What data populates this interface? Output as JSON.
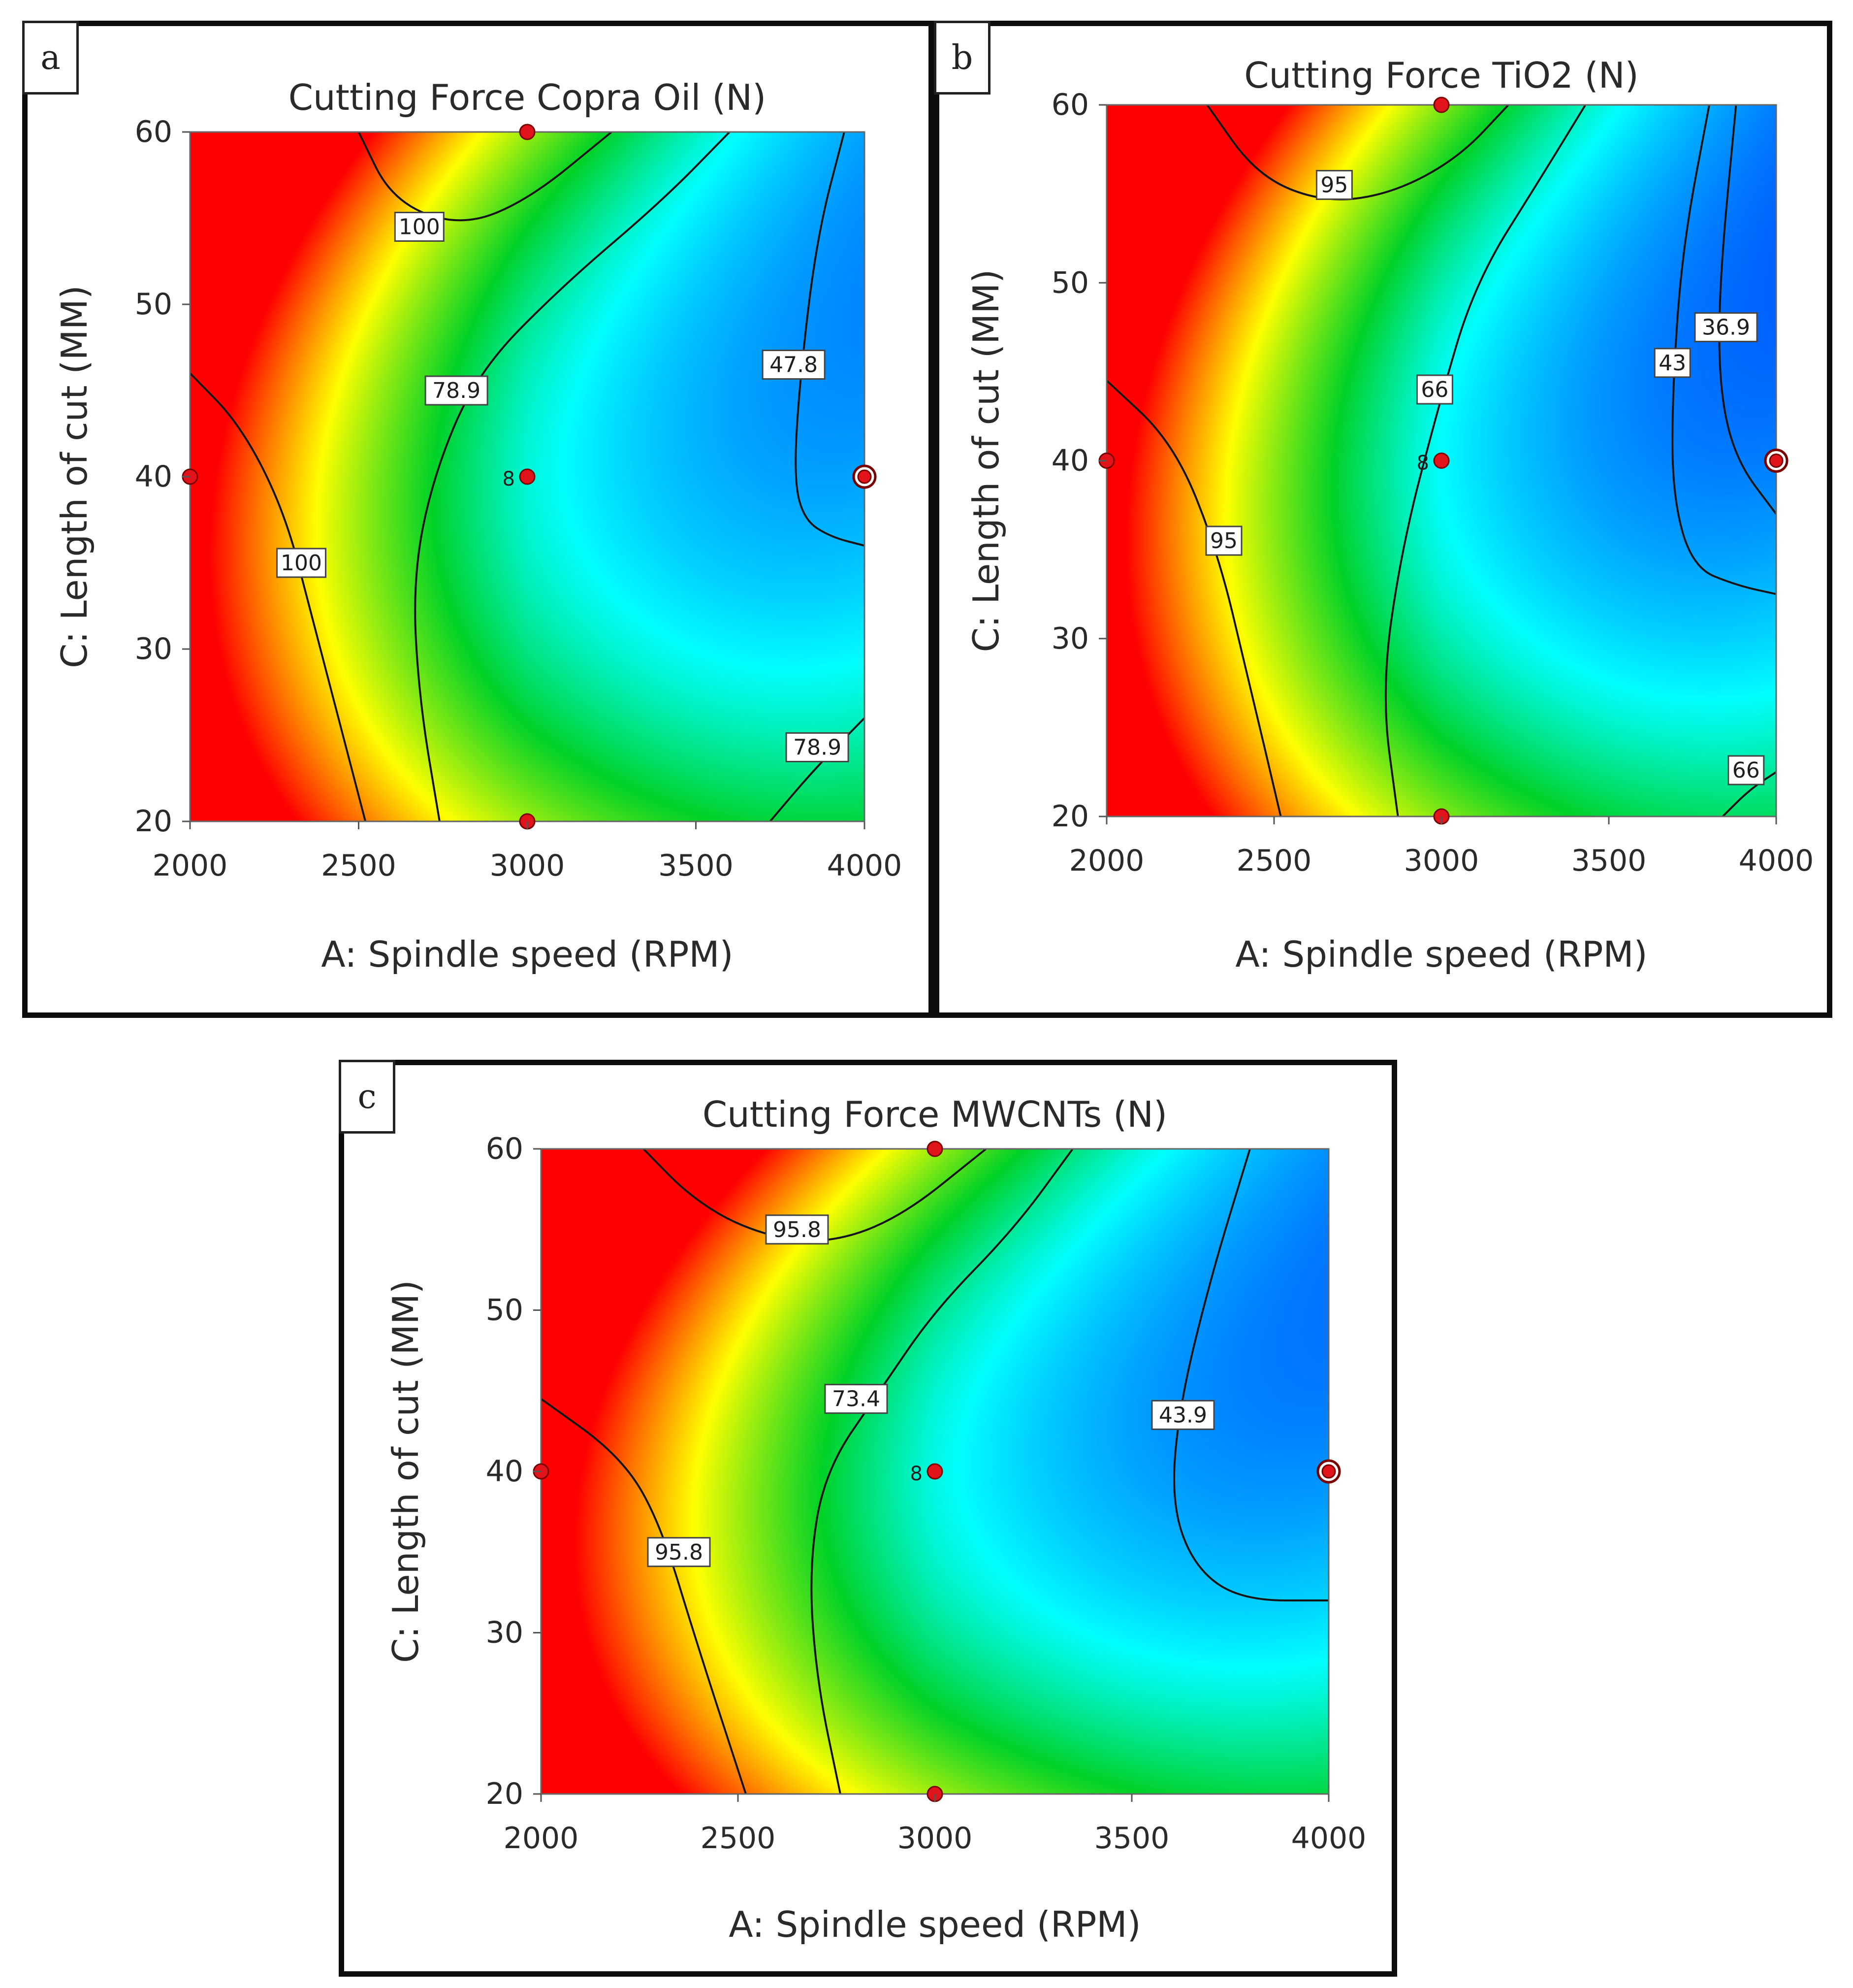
{
  "chart_data": [
    {
      "panel": "a",
      "type": "contour",
      "title": "Cutting Force Copra Oil  (N)",
      "xlabel": "A: Spindle speed (RPM)",
      "ylabel": "C: Length of cut (MM)",
      "xlim": [
        2000,
        4000
      ],
      "ylim": [
        20,
        60
      ],
      "xticks": [
        "2000",
        "2500",
        "3000",
        "3500",
        "4000"
      ],
      "yticks": [
        "20",
        "30",
        "40",
        "50",
        "60"
      ],
      "color_range": [
        30,
        120
      ],
      "contours": [
        {
          "level": 100,
          "label": "100",
          "points": [
            [
              2500,
              60
            ],
            [
              2600,
              56
            ],
            [
              2800,
              54.5
            ],
            [
              3000,
              56
            ],
            [
              3250,
              60
            ]
          ],
          "label_at": [
            2680,
            54.5
          ]
        },
        {
          "level": 100,
          "label": "100",
          "points": [
            [
              2000,
              46
            ],
            [
              2150,
              43
            ],
            [
              2280,
              38
            ],
            [
              2360,
              32
            ],
            [
              2440,
              26
            ],
            [
              2520,
              20
            ]
          ],
          "label_at": [
            2330,
            35
          ]
        },
        {
          "level": 78.9,
          "label": "78.9",
          "points": [
            [
              3600,
              60
            ],
            [
              3400,
              56
            ],
            [
              3100,
              51
            ],
            [
              2850,
              46
            ],
            [
              2720,
              40
            ],
            [
              2660,
              34
            ],
            [
              2680,
              27
            ],
            [
              2740,
              20
            ]
          ],
          "label_at": [
            2790,
            45
          ]
        },
        {
          "level": 78.9,
          "label": "78.9",
          "points": [
            [
              3720,
              20
            ],
            [
              3850,
              23
            ],
            [
              4000,
              26
            ]
          ],
          "label_at": [
            3860,
            24.3
          ]
        },
        {
          "level": 47.8,
          "label": "47.8",
          "points": [
            [
              3940,
              60
            ],
            [
              3860,
              54
            ],
            [
              3810,
              46
            ],
            [
              3790,
              40
            ],
            [
              3820,
              37.5
            ],
            [
              3900,
              36.5
            ],
            [
              4000,
              36
            ]
          ],
          "label_at": [
            3790,
            46.5
          ]
        }
      ],
      "design_points": [
        {
          "x": 2000,
          "y": 40,
          "label": ""
        },
        {
          "x": 3000,
          "y": 60,
          "label": ""
        },
        {
          "x": 3000,
          "y": 40,
          "label": "8"
        },
        {
          "x": 3000,
          "y": 20,
          "label": ""
        },
        {
          "x": 4000,
          "y": 40,
          "label": ""
        }
      ]
    },
    {
      "panel": "b",
      "type": "contour",
      "title": "Cutting Force TiO2  (N)",
      "xlabel": "A: Spindle speed (RPM)",
      "ylabel": "C: Length of cut (MM)",
      "xlim": [
        2000,
        4000
      ],
      "ylim": [
        20,
        60
      ],
      "xticks": [
        "2000",
        "2500",
        "3000",
        "3500",
        "4000"
      ],
      "yticks": [
        "20",
        "30",
        "40",
        "50",
        "60"
      ],
      "color_range": [
        30,
        115
      ],
      "contours": [
        {
          "level": 95,
          "label": "95",
          "points": [
            [
              2300,
              60
            ],
            [
              2450,
              56
            ],
            [
              2650,
              54.5
            ],
            [
              2850,
              55
            ],
            [
              3050,
              57
            ],
            [
              3200,
              60
            ]
          ],
          "label_at": [
            2680,
            55.5
          ]
        },
        {
          "level": 95,
          "label": "95",
          "points": [
            [
              2000,
              44.5
            ],
            [
              2200,
              41
            ],
            [
              2330,
              35
            ],
            [
              2420,
              28
            ],
            [
              2520,
              20
            ]
          ],
          "label_at": [
            2350,
            35.5
          ]
        },
        {
          "level": 66,
          "label": "66",
          "points": [
            [
              3430,
              60
            ],
            [
              3300,
              56
            ],
            [
              3100,
              50
            ],
            [
              2990,
              43
            ],
            [
              2880,
              35
            ],
            [
              2820,
              27
            ],
            [
              2870,
              20
            ]
          ],
          "label_at": [
            2980,
            44
          ]
        },
        {
          "level": 66,
          "label": "66",
          "points": [
            [
              3840,
              20
            ],
            [
              3920,
              21.5
            ],
            [
              4000,
              22.5
            ]
          ],
          "label_at": [
            3910,
            22.6
          ]
        },
        {
          "level": 43,
          "label": "43",
          "points": [
            [
              3800,
              60
            ],
            [
              3720,
              52
            ],
            [
              3690,
              44
            ],
            [
              3690,
              38
            ],
            [
              3750,
              34
            ],
            [
              3880,
              33
            ],
            [
              4000,
              32.5
            ]
          ],
          "label_at": [
            3690,
            45.5
          ]
        },
        {
          "level": 36.9,
          "label": "36.9",
          "points": [
            [
              3880,
              60
            ],
            [
              3830,
              50
            ],
            [
              3830,
              44
            ],
            [
              3880,
              40
            ],
            [
              4000,
              37
            ]
          ],
          "label_at": [
            3850,
            47.5
          ]
        }
      ],
      "design_points": [
        {
          "x": 2000,
          "y": 40,
          "label": ""
        },
        {
          "x": 3000,
          "y": 60,
          "label": ""
        },
        {
          "x": 3000,
          "y": 40,
          "label": "8"
        },
        {
          "x": 3000,
          "y": 20,
          "label": ""
        },
        {
          "x": 4000,
          "y": 40,
          "label": ""
        }
      ]
    },
    {
      "panel": "c",
      "type": "contour",
      "title": "Cutting Force MWCNTs  (N)",
      "xlabel": "A: Spindle speed (RPM)",
      "ylabel": "C: Length of cut (MM)",
      "xlim": [
        2000,
        4000
      ],
      "ylim": [
        20,
        60
      ],
      "xticks": [
        "2000",
        "2500",
        "3000",
        "3500",
        "4000"
      ],
      "yticks": [
        "20",
        "30",
        "40",
        "50",
        "60"
      ],
      "color_range": [
        30,
        115
      ],
      "contours": [
        {
          "level": 95.8,
          "label": "95.8",
          "points": [
            [
              2260,
              60
            ],
            [
              2380,
              57
            ],
            [
              2520,
              55
            ],
            [
              2700,
              54
            ],
            [
              2900,
              55.5
            ],
            [
              3130,
              60
            ]
          ],
          "label_at": [
            2650,
            55
          ]
        },
        {
          "level": 95.8,
          "label": "95.8",
          "points": [
            [
              2000,
              44.5
            ],
            [
              2200,
              41
            ],
            [
              2300,
              37
            ],
            [
              2400,
              29
            ],
            [
              2520,
              20
            ]
          ],
          "label_at": [
            2350,
            35
          ]
        },
        {
          "level": 73.4,
          "label": "73.4",
          "points": [
            [
              3350,
              60
            ],
            [
              3200,
              55
            ],
            [
              3000,
              50
            ],
            [
              2860,
              45
            ],
            [
              2720,
              40
            ],
            [
              2680,
              34
            ],
            [
              2700,
              27
            ],
            [
              2760,
              20
            ]
          ],
          "label_at": [
            2800,
            44.5
          ]
        },
        {
          "level": 43.9,
          "label": "43.9",
          "points": [
            [
              3800,
              60
            ],
            [
              3700,
              52
            ],
            [
              3620,
              44
            ],
            [
              3600,
              38
            ],
            [
              3660,
              34
            ],
            [
              3780,
              32
            ],
            [
              4000,
              32
            ]
          ],
          "label_at": [
            3630,
            43.5
          ]
        }
      ],
      "design_points": [
        {
          "x": 2000,
          "y": 40,
          "label": ""
        },
        {
          "x": 3000,
          "y": 60,
          "label": ""
        },
        {
          "x": 3000,
          "y": 40,
          "label": "8"
        },
        {
          "x": 3000,
          "y": 20,
          "label": ""
        },
        {
          "x": 4000,
          "y": 40,
          "label": ""
        }
      ]
    }
  ],
  "panels": [
    {
      "label": "a"
    },
    {
      "label": "b"
    },
    {
      "label": "c"
    }
  ]
}
